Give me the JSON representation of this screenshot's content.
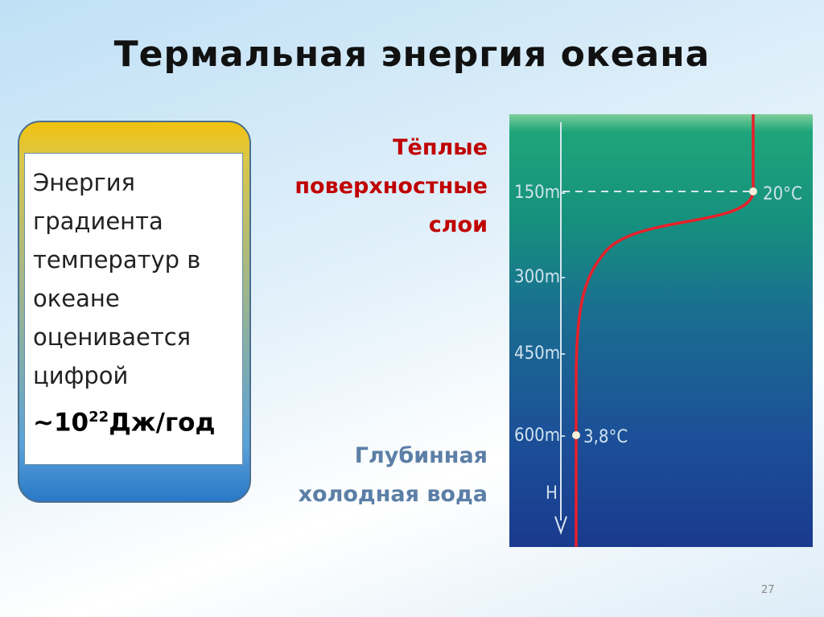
{
  "title": "Термальная энергия океана",
  "info_box": {
    "lines": [
      "Энергия",
      "градиента",
      "температур в",
      "океане",
      "оценивается",
      "цифрой"
    ],
    "value": {
      "prefix": "~10",
      "exponent": "22",
      "unit": "Дж/год"
    }
  },
  "warm_label": {
    "lines": [
      "Тёплые",
      "поверхностные",
      "слои"
    ]
  },
  "cold_label": {
    "lines": [
      "Глубинная",
      "холодная вода"
    ]
  },
  "diagram": {
    "depth_labels": [
      "150m-",
      "300m-",
      "450m-",
      "600m-"
    ],
    "surface_temp": "20°C",
    "deep_temp": "3,8°C",
    "axis_label": "H"
  },
  "page_number": "27"
}
